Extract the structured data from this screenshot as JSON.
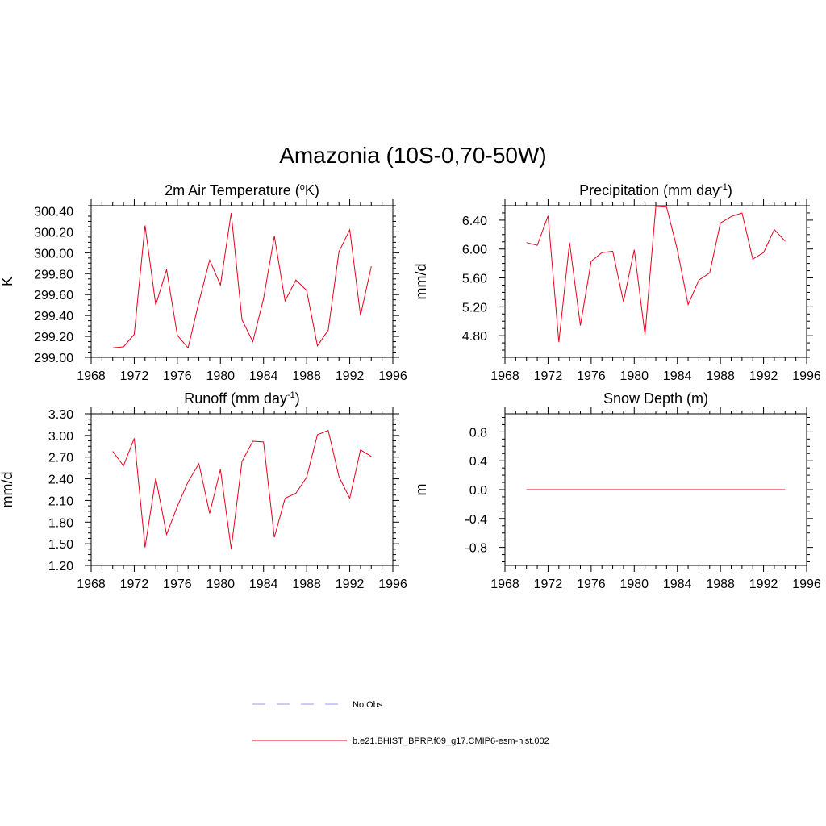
{
  "figure_title": "Amazonia (10S-0,70-50W)",
  "colors": {
    "model": "#e8001c",
    "obs": "#9a9aff",
    "axis": "#000000"
  },
  "legend": {
    "obs_label": "No Obs",
    "model_label": "b.e21.BHIST_BPRP.f09_g17.CMIP6-esm-hist.002"
  },
  "chart_data": [
    {
      "type": "line",
      "title": "2m Air Temperature (",
      "title_sup_pre": "o",
      "title_after": "K)",
      "ylabel": "K",
      "xlim": [
        1968,
        1996
      ],
      "ylim": [
        299.0,
        300.45
      ],
      "xticks": [
        1968,
        1972,
        1976,
        1980,
        1984,
        1988,
        1992,
        1996
      ],
      "yticks": [
        299.0,
        299.2,
        299.4,
        299.6,
        299.8,
        300.0,
        300.2,
        300.4
      ],
      "ytick_labels": [
        "299.00",
        "299.20",
        "299.40",
        "299.60",
        "299.80",
        "300.00",
        "300.20",
        "300.40"
      ],
      "x": [
        1970,
        1971,
        1972,
        1973,
        1974,
        1975,
        1976,
        1977,
        1978,
        1979,
        1980,
        1981,
        1982,
        1983,
        1984,
        1985,
        1986,
        1987,
        1988,
        1989,
        1990,
        1991,
        1992,
        1993,
        1994
      ],
      "series": [
        {
          "name": "b.e21.BHIST_BPRP.f09_g17.CMIP6-esm-hist.002",
          "values": [
            299.09,
            299.1,
            299.22,
            300.26,
            299.5,
            299.84,
            299.21,
            299.09,
            299.53,
            299.93,
            299.69,
            300.38,
            299.36,
            299.15,
            299.56,
            300.16,
            299.54,
            299.74,
            299.64,
            299.11,
            299.26,
            300.01,
            300.22,
            299.4,
            299.87
          ]
        }
      ]
    },
    {
      "type": "line",
      "title": "Precipitation (mm day",
      "title_sup": "-1",
      "title_after": ")",
      "ylabel": "mm/d",
      "xlim": [
        1968,
        1996
      ],
      "ylim": [
        4.5,
        6.6
      ],
      "xticks": [
        1968,
        1972,
        1976,
        1980,
        1984,
        1988,
        1992,
        1996
      ],
      "yticks": [
        4.8,
        5.2,
        5.6,
        6.0,
        6.4
      ],
      "ytick_labels": [
        "4.80",
        "5.20",
        "5.60",
        "6.00",
        "6.40"
      ],
      "x": [
        1970,
        1971,
        1972,
        1973,
        1974,
        1975,
        1976,
        1977,
        1978,
        1979,
        1980,
        1981,
        1982,
        1983,
        1984,
        1985,
        1986,
        1987,
        1988,
        1989,
        1990,
        1991,
        1992,
        1993,
        1994
      ],
      "series": [
        {
          "name": "b.e21.BHIST_BPRP.f09_g17.CMIP6-esm-hist.002",
          "values": [
            6.09,
            6.05,
            6.46,
            4.71,
            6.09,
            4.94,
            5.83,
            5.95,
            5.97,
            5.27,
            5.99,
            4.81,
            6.59,
            6.58,
            5.99,
            5.23,
            5.57,
            5.67,
            6.36,
            6.45,
            6.5,
            5.86,
            5.95,
            6.27,
            6.11
          ]
        }
      ]
    },
    {
      "type": "line",
      "title": "Runoff (mm day",
      "title_sup": "-1",
      "title_after": ")",
      "ylabel": "mm/d",
      "xlim": [
        1968,
        1996
      ],
      "ylim": [
        1.2,
        3.3
      ],
      "xticks": [
        1968,
        1972,
        1976,
        1980,
        1984,
        1988,
        1992,
        1996
      ],
      "yticks": [
        1.2,
        1.5,
        1.8,
        2.1,
        2.4,
        2.7,
        3.0,
        3.3
      ],
      "ytick_labels": [
        "1.20",
        "1.50",
        "1.80",
        "2.10",
        "2.40",
        "2.70",
        "3.00",
        "3.30"
      ],
      "x": [
        1970,
        1971,
        1972,
        1973,
        1974,
        1975,
        1976,
        1977,
        1978,
        1979,
        1980,
        1981,
        1982,
        1983,
        1984,
        1985,
        1986,
        1987,
        1988,
        1989,
        1990,
        1991,
        1992,
        1993,
        1994
      ],
      "series": [
        {
          "name": "b.e21.BHIST_BPRP.f09_g17.CMIP6-esm-hist.002",
          "values": [
            2.78,
            2.58,
            2.96,
            1.45,
            2.41,
            1.63,
            2.02,
            2.36,
            2.61,
            1.92,
            2.53,
            1.43,
            2.64,
            2.92,
            2.91,
            1.59,
            2.13,
            2.2,
            2.42,
            3.01,
            3.07,
            2.43,
            2.13,
            2.8,
            2.71
          ]
        }
      ]
    },
    {
      "type": "line",
      "title": "Snow Depth (m)",
      "ylabel": "m",
      "xlim": [
        1968,
        1996
      ],
      "ylim": [
        -1.05,
        1.05
      ],
      "xticks": [
        1968,
        1972,
        1976,
        1980,
        1984,
        1988,
        1992,
        1996
      ],
      "yticks": [
        -0.8,
        -0.4,
        0.0,
        0.4,
        0.8
      ],
      "ytick_labels": [
        "-0.8",
        "-0.4",
        "0.0",
        "0.4",
        "0.8"
      ],
      "x": [
        1970,
        1994
      ],
      "series": [
        {
          "name": "b.e21.BHIST_BPRP.f09_g17.CMIP6-esm-hist.002",
          "values": [
            0.0,
            0.0
          ]
        }
      ]
    }
  ]
}
